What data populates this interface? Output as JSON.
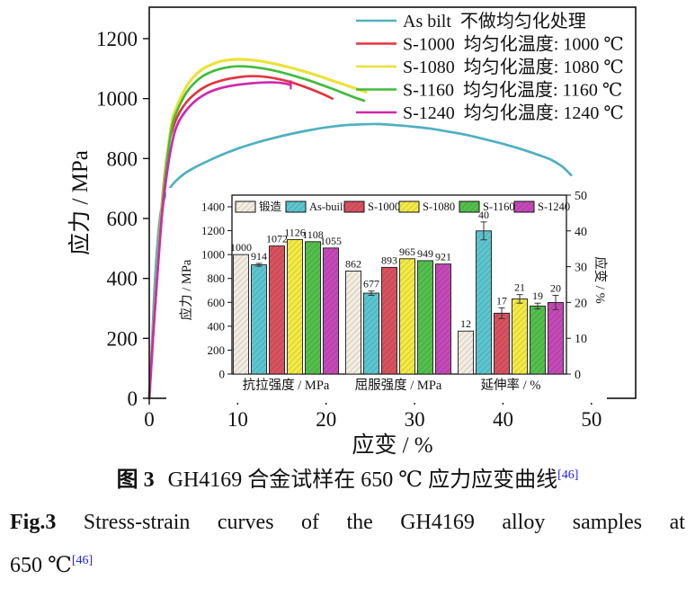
{
  "page": {
    "background": "#ffffff",
    "ref_color": "#2222ee"
  },
  "figure": {
    "caption_zh": {
      "label": "图 3",
      "text": "GH4169 合金试样在 650 ℃ 应力应变曲线",
      "ref": "[46]"
    },
    "caption_en": {
      "line1": "Fig.3 Stress-strain curves of the GH4169 alloy samples at",
      "line2": "650 ℃",
      "ref": "[46]"
    }
  },
  "chart_data": [
    {
      "type": "line",
      "title": "",
      "xlabel": "应变 / %",
      "ylabel": "应力 / MPa",
      "xlim": [
        0,
        55
      ],
      "ylim": [
        0,
        1305
      ],
      "xticks": [
        0,
        10,
        20,
        30,
        40,
        50
      ],
      "yticks": [
        0,
        200,
        400,
        600,
        800,
        1000,
        1200
      ],
      "grid": false,
      "legend_position": "top-right-inside",
      "series": [
        {
          "name": "As bilt",
          "desc": "不做均匀化处理",
          "color": "#4fb0c0",
          "points": [
            [
              0,
              0
            ],
            [
              0.3,
              180
            ],
            [
              0.7,
              420
            ],
            [
              1.2,
              600
            ],
            [
              1.7,
              665
            ],
            [
              2.3,
              700
            ],
            [
              3,
              725
            ],
            [
              4,
              750
            ],
            [
              5,
              768
            ],
            [
              6.5,
              790
            ],
            [
              8,
              810
            ],
            [
              10,
              833
            ],
            [
              12,
              852
            ],
            [
              14,
              868
            ],
            [
              16,
              882
            ],
            [
              18,
              894
            ],
            [
              20,
              904
            ],
            [
              22,
              911
            ],
            [
              24,
              914
            ],
            [
              26,
              915
            ],
            [
              28,
              911
            ],
            [
              30,
              906
            ],
            [
              32,
              899
            ],
            [
              34,
              889
            ],
            [
              36,
              878
            ],
            [
              38,
              864
            ],
            [
              40,
              849
            ],
            [
              42,
              832
            ],
            [
              44,
              812
            ],
            [
              45.5,
              795
            ],
            [
              46.7,
              773
            ],
            [
              47.7,
              745
            ]
          ]
        },
        {
          "name": "S-1000",
          "desc": "均匀化温度: 1000 ℃",
          "color": "#e23540",
          "points": [
            [
              0,
              0
            ],
            [
              0.4,
              200
            ],
            [
              0.9,
              430
            ],
            [
              1.4,
              640
            ],
            [
              1.9,
              790
            ],
            [
              2.3,
              862
            ],
            [
              2.6,
              893
            ],
            [
              3,
              928
            ],
            [
              3.5,
              958
            ],
            [
              4.2,
              988
            ],
            [
              5,
              1012
            ],
            [
              6,
              1034
            ],
            [
              7,
              1049
            ],
            [
              8.5,
              1063
            ],
            [
              10,
              1071
            ],
            [
              11.5,
              1075
            ],
            [
              13,
              1073
            ],
            [
              14.5,
              1066
            ],
            [
              16,
              1055
            ],
            [
              17.5,
              1040
            ],
            [
              19,
              1023
            ],
            [
              20,
              1010
            ],
            [
              20.7,
              1000
            ]
          ]
        },
        {
          "name": "S-1080",
          "desc": "均匀化温度: 1080 ℃",
          "color": "#ece23a",
          "points": [
            [
              0,
              0
            ],
            [
              0.4,
              195
            ],
            [
              0.9,
              420
            ],
            [
              1.5,
              660
            ],
            [
              2.1,
              830
            ],
            [
              2.6,
              930
            ],
            [
              3,
              965
            ],
            [
              3.5,
              1000
            ],
            [
              4.2,
              1040
            ],
            [
              5,
              1072
            ],
            [
              6,
              1098
            ],
            [
              7,
              1113
            ],
            [
              8,
              1124
            ],
            [
              9,
              1129
            ],
            [
              10,
              1131
            ],
            [
              11.5,
              1129
            ],
            [
              13,
              1123
            ],
            [
              14.5,
              1114
            ],
            [
              16,
              1103
            ],
            [
              17.5,
              1091
            ],
            [
              19,
              1077
            ],
            [
              20.5,
              1062
            ],
            [
              22,
              1047
            ],
            [
              23.3,
              1034
            ],
            [
              24.5,
              1022
            ]
          ]
        },
        {
          "name": "S-1160",
          "desc": "均匀化温度: 1160 ℃",
          "color": "#42bb3c",
          "points": [
            [
              0,
              0
            ],
            [
              0.4,
              195
            ],
            [
              0.9,
              415
            ],
            [
              1.5,
              650
            ],
            [
              2.1,
              815
            ],
            [
              2.6,
              912
            ],
            [
              3,
              949
            ],
            [
              3.5,
              982
            ],
            [
              4.2,
              1020
            ],
            [
              5,
              1049
            ],
            [
              6,
              1074
            ],
            [
              7,
              1089
            ],
            [
              8,
              1099
            ],
            [
              9,
              1105
            ],
            [
              10,
              1108
            ],
            [
              11.5,
              1106
            ],
            [
              13,
              1100
            ],
            [
              14.5,
              1091
            ],
            [
              16,
              1079
            ],
            [
              17.5,
              1066
            ],
            [
              19,
              1051
            ],
            [
              20.5,
              1035
            ],
            [
              22,
              1018
            ],
            [
              23.2,
              1004
            ],
            [
              24.3,
              993
            ]
          ]
        },
        {
          "name": "S-1240",
          "desc": "均匀化温度: 1240 ℃",
          "color": "#cf28ad",
          "end_marker": true,
          "points": [
            [
              0,
              0
            ],
            [
              0.4,
              190
            ],
            [
              0.9,
              405
            ],
            [
              1.5,
              630
            ],
            [
              2.2,
              790
            ],
            [
              2.8,
              880
            ],
            [
              3.3,
              921
            ],
            [
              3.9,
              950
            ],
            [
              4.6,
              975
            ],
            [
              5.4,
              997
            ],
            [
              6.4,
              1016
            ],
            [
              7.5,
              1030
            ],
            [
              8.8,
              1040
            ],
            [
              10,
              1046
            ],
            [
              11.5,
              1051
            ],
            [
              13,
              1054
            ],
            [
              14.2,
              1054
            ],
            [
              15.2,
              1051
            ],
            [
              16,
              1046
            ]
          ]
        }
      ]
    },
    {
      "type": "bar",
      "inset": true,
      "axis_left": {
        "label": "应力 / MPa",
        "lim": [
          0,
          1400
        ],
        "ticks": [
          0,
          200,
          400,
          600,
          800,
          1000,
          1200,
          1400
        ]
      },
      "axis_right": {
        "label": "应变 / %",
        "lim": [
          0,
          50
        ],
        "ticks": [
          0,
          10,
          20,
          30,
          40,
          50
        ]
      },
      "categories": [
        "抗拉强度 / MPa",
        "屈服强度 / MPa",
        "延伸率 / %"
      ],
      "category_axis": [
        "left",
        "left",
        "right"
      ],
      "series": [
        {
          "name": "锻造",
          "color": "#f2ece1",
          "values": [
            1000,
            862,
            12
          ],
          "errors": [
            null,
            null,
            null
          ]
        },
        {
          "name": "As-built",
          "color": "#5cc6d0",
          "values": [
            914,
            677,
            40
          ],
          "errors": [
            12,
            18,
            2.5
          ]
        },
        {
          "name": "S-1000",
          "color": "#d9525f",
          "values": [
            1072,
            893,
            17
          ],
          "errors": [
            null,
            null,
            1.5
          ]
        },
        {
          "name": "S-1080",
          "color": "#f3ea45",
          "values": [
            1126,
            965,
            21
          ],
          "errors": [
            null,
            null,
            1.2
          ]
        },
        {
          "name": "S-1160",
          "color": "#53c04c",
          "values": [
            1108,
            949,
            19
          ],
          "errors": [
            null,
            null,
            0.8
          ]
        },
        {
          "name": "S-1240",
          "color": "#c549b8",
          "values": [
            1055,
            921,
            20
          ],
          "errors": [
            null,
            null,
            2
          ]
        }
      ]
    }
  ]
}
